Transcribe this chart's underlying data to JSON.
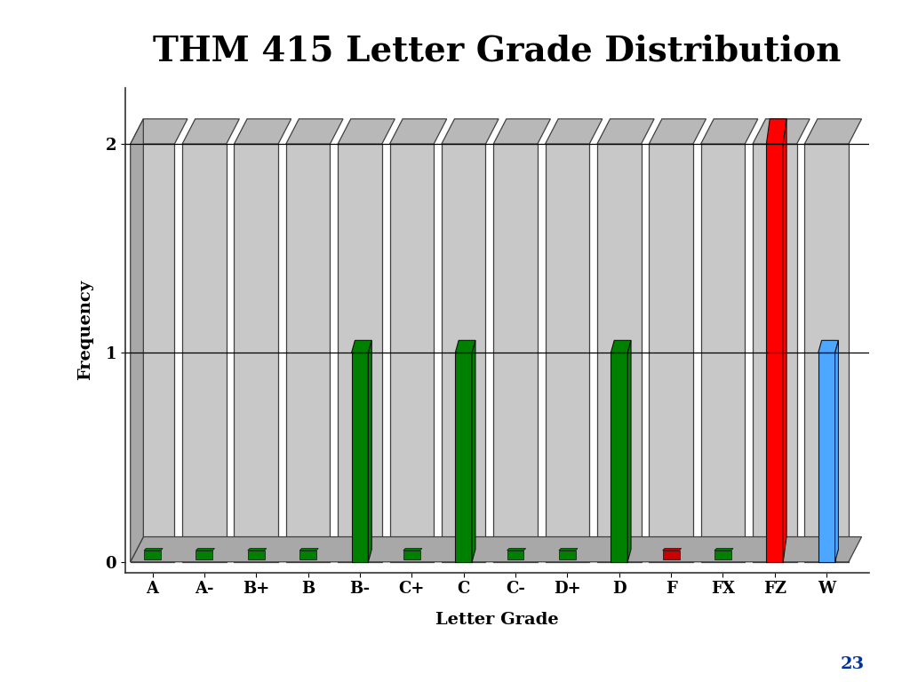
{
  "categories": [
    "A",
    "A-",
    "B+",
    "B",
    "B-",
    "C+",
    "C",
    "C-",
    "D+",
    "D",
    "F",
    "FX",
    "FZ",
    "W"
  ],
  "values": [
    0,
    0,
    0,
    0,
    1,
    0,
    1,
    0,
    0,
    1,
    0,
    0,
    2,
    1
  ],
  "bar_colors": [
    "#008000",
    "#008000",
    "#008000",
    "#008000",
    "#008000",
    "#008000",
    "#008000",
    "#008000",
    "#008000",
    "#008000",
    "#008000",
    "#008000",
    "#ff0000",
    "#4da6ff"
  ],
  "floor_colors": [
    "#008000",
    "#008000",
    "#008000",
    "#008000",
    "#008000",
    "#008000",
    "#008000",
    "#008000",
    "#008000",
    "#008000",
    "#cc0000",
    "#008000",
    "#ff0000",
    "#4da6ff"
  ],
  "bar_gray_front": "#c8c8c8",
  "bar_gray_side": "#a8a8a8",
  "bar_gray_top": "#b8b8b8",
  "title": "THM 415 Letter Grade Distribution",
  "xlabel": "Letter Grade",
  "ylabel": "Frequency",
  "ymax": 2,
  "yticks": [
    0,
    1,
    2
  ],
  "bg_color": "#ffffff",
  "grid_color": "#000000",
  "title_fontsize": 28,
  "axis_label_fontsize": 14,
  "tick_fontsize": 13,
  "page_num": "23",
  "page_num_color": "#003399"
}
